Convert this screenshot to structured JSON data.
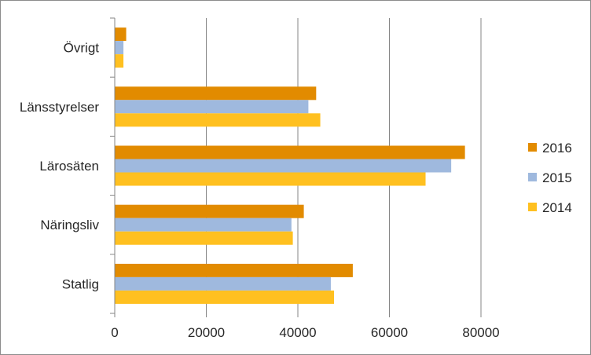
{
  "chart_data": {
    "type": "bar",
    "orientation": "horizontal",
    "categories": [
      "Övrigt",
      "Länsstyrelser",
      "Lärosäten",
      "Näringsliv",
      "Statlig"
    ],
    "series": [
      {
        "name": "2016",
        "color": "#e28b00",
        "values": [
          2500,
          44000,
          76500,
          41300,
          52000
        ]
      },
      {
        "name": "2015",
        "color": "#9fb9de",
        "values": [
          1900,
          42300,
          73500,
          38600,
          47200
        ]
      },
      {
        "name": "2014",
        "color": "#ffc020",
        "values": [
          1900,
          44900,
          67900,
          38900,
          47900
        ]
      }
    ],
    "xlim": [
      0,
      80000
    ],
    "xticks": [
      0,
      20000,
      40000,
      60000,
      80000
    ],
    "xtick_labels": [
      "0",
      "20000",
      "40000",
      "60000",
      "80000"
    ],
    "grid": true,
    "legend_position": "right",
    "title": "",
    "xlabel": "",
    "ylabel": ""
  }
}
